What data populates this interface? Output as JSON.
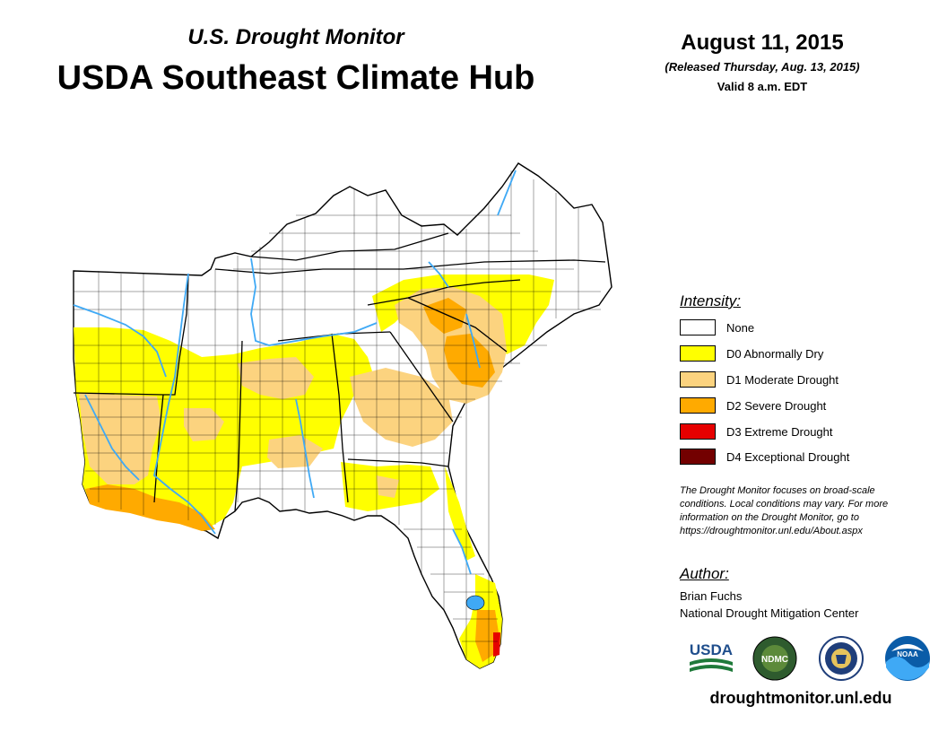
{
  "header": {
    "subtitle": "U.S. Drought Monitor",
    "title": "USDA Southeast Climate Hub",
    "date": "August 11, 2015",
    "released": "(Released Thursday, Aug. 13, 2015)",
    "valid": "Valid 8 a.m. EDT"
  },
  "legend": {
    "title": "Intensity:",
    "items": [
      {
        "label": "None",
        "color": "#ffffff"
      },
      {
        "label": "D0 Abnormally Dry",
        "color": "#ffff00"
      },
      {
        "label": "D1 Moderate Drought",
        "color": "#fcd37f"
      },
      {
        "label": "D2 Severe Drought",
        "color": "#ffaa00"
      },
      {
        "label": "D3 Extreme Drought",
        "color": "#e60000"
      },
      {
        "label": "D4 Exceptional Drought",
        "color": "#730000"
      }
    ]
  },
  "note": {
    "line1": "The Drought Monitor focuses on broad-scale",
    "line2": "conditions. Local conditions may vary. For more",
    "line3": "information on the Drought Monitor, go to",
    "line4": "https://droughtmonitor.unl.edu/About.aspx"
  },
  "author": {
    "title": "Author:",
    "name": "Brian Fuchs",
    "org": "National Drought Mitigation Center"
  },
  "logos": {
    "usda": "USDA",
    "ndmc": "NDMC",
    "noaa": "NOAA"
  },
  "footer": {
    "url": "droughtmonitor.unl.edu"
  },
  "map": {
    "water_color": "#3fa9f5"
  }
}
